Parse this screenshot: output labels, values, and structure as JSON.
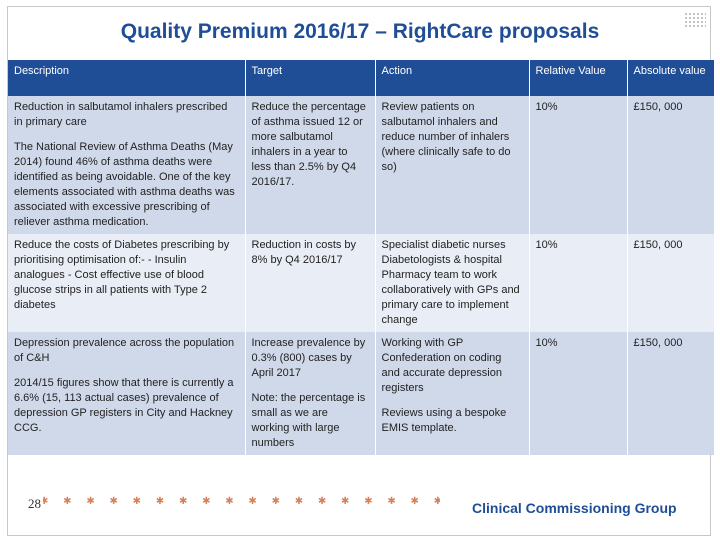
{
  "slide": {
    "title": "Quality Premium 2016/17 – RightCare proposals",
    "page_number": "28",
    "footer_logo_text": "Clinical Commissioning Group"
  },
  "table": {
    "headers": [
      "Description",
      "Target",
      "Action",
      "Relative Value",
      "Absolute value"
    ],
    "rows": [
      {
        "description": [
          "Reduction in salbutamol inhalers prescribed in primary care",
          "The National Review of Asthma Deaths (May 2014) found 46% of asthma deaths were identified as being avoidable. One of the key elements associated with asthma deaths was associated with excessive prescribing of reliever asthma medication."
        ],
        "target": [
          "Reduce the percentage of asthma issued 12 or more salbutamol inhalers in a year to less than 2.5% by Q4 2016/17."
        ],
        "action": [
          "Review patients on salbutamol inhalers and reduce number of inhalers (where clinically safe to do so)"
        ],
        "relative_value": "10%",
        "absolute_value": "£150, 000"
      },
      {
        "description": [
          "Reduce the costs of Diabetes prescribing by prioritising optimisation of:- - Insulin analogues - Cost effective use of blood glucose strips in all patients with Type 2 diabetes"
        ],
        "target": [
          "Reduction in costs by 8% by Q4 2016/17"
        ],
        "action": [
          "Specialist diabetic nurses Diabetologists & hospital Pharmacy team to work collaboratively with GPs and primary care to implement change"
        ],
        "relative_value": "10%",
        "absolute_value": "£150, 000"
      },
      {
        "description": [
          "Depression prevalence across the population of C&H",
          "2014/15 figures show that there is currently a 6.6% (15, 113 actual cases) prevalence of depression GP registers in City and Hackney CCG."
        ],
        "target": [
          "Increase prevalence by 0.3% (800) cases by April 2017",
          "Note: the percentage is small as we are working with large numbers"
        ],
        "action": [
          "Working with GP Confederation on coding and accurate depression registers",
          "Reviews using a bespoke EMIS template."
        ],
        "relative_value": "10%",
        "absolute_value": "£150, 000"
      }
    ]
  }
}
